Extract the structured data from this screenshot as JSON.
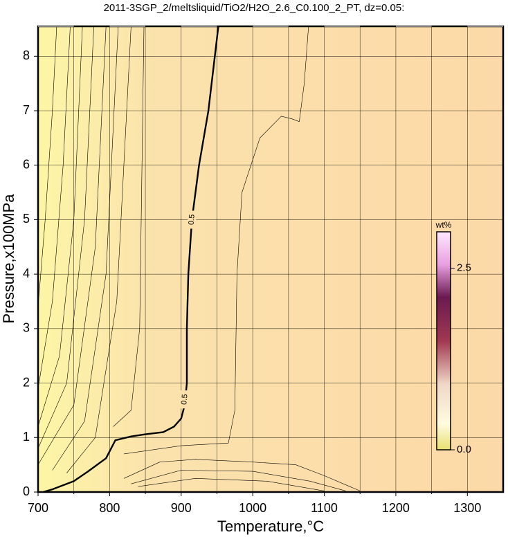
{
  "chart_data": {
    "type": "contour",
    "title": "2011-3SGP_2/meltsliquid/TiO2/H2O_2.6_C0.100_2_PT, dz=0.05:",
    "xlabel": "Temperature,°C",
    "ylabel": "Pressure,x100MPa",
    "xlim": [
      700,
      1350
    ],
    "ylim": [
      0,
      8.55
    ],
    "xticks": [
      700,
      800,
      900,
      1000,
      1100,
      1200,
      1300
    ],
    "x_minor_ticks": [
      750,
      850,
      950,
      1050,
      1150,
      1250
    ],
    "yticks": [
      0,
      1,
      2,
      3,
      4,
      5,
      6,
      7,
      8
    ],
    "grid": true,
    "contours": [
      {
        "level": 0.5,
        "x": [
          707,
          720,
          750,
          770,
          795,
          808,
          830,
          850,
          875,
          890,
          900,
          905,
          908,
          908,
          910,
          915,
          925,
          938,
          952
        ],
        "y": [
          0,
          0.05,
          0.2,
          0.38,
          0.62,
          0.95,
          1.02,
          1.06,
          1.1,
          1.2,
          1.35,
          1.6,
          2.0,
          3.0,
          4.0,
          5.0,
          6.0,
          7.0,
          8.55
        ]
      },
      {
        "x": [
          700,
          710,
          720,
          726
        ],
        "y": [
          3.4,
          5,
          7,
          8.55
        ]
      },
      {
        "x": [
          700,
          720,
          735,
          745
        ],
        "y": [
          1.9,
          3.5,
          6,
          8.55
        ]
      },
      {
        "x": [
          700,
          730,
          750,
          762
        ],
        "y": [
          1.2,
          2.5,
          5,
          8.55
        ]
      },
      {
        "x": [
          700,
          740,
          765,
          778
        ],
        "y": [
          0.8,
          2,
          5,
          8.55
        ]
      },
      {
        "x": [
          700,
          750,
          780,
          795
        ],
        "y": [
          0.5,
          1.6,
          4.5,
          8.55
        ]
      },
      {
        "x": [
          720,
          765,
          795,
          812
        ],
        "y": [
          0.4,
          1.3,
          4,
          8.55
        ]
      },
      {
        "x": [
          740,
          780,
          810,
          830
        ],
        "y": [
          0.35,
          1.0,
          3.5,
          8.55
        ]
      },
      {
        "x": [
          805,
          830,
          842,
          848
        ],
        "y": [
          1.2,
          1.5,
          3,
          8.55
        ]
      },
      {
        "x": [
          820,
          900,
          966,
          975,
          978,
          985,
          1010,
          1040,
          1055,
          1065,
          1072,
          1078
        ],
        "y": [
          0.7,
          0.85,
          0.9,
          1.5,
          4,
          5.5,
          6.5,
          6.9,
          6.85,
          6.8,
          7.5,
          8.55
        ]
      },
      {
        "x": [
          820,
          870,
          920,
          1000,
          1060,
          1100,
          1150
        ],
        "y": [
          0.25,
          0.55,
          0.6,
          0.55,
          0.5,
          0.3,
          0.02
        ]
      },
      {
        "x": [
          830,
          900,
          1000,
          1080,
          1130
        ],
        "y": [
          0.15,
          0.4,
          0.38,
          0.2,
          0.02
        ]
      },
      {
        "x": [
          840,
          920,
          1020,
          1100
        ],
        "y": [
          0.1,
          0.25,
          0.2,
          0.02
        ]
      }
    ],
    "colorbar": {
      "label": "wt%",
      "lim": [
        0,
        3.0
      ],
      "ticks": [
        {
          "value": 0,
          "label": "0.0"
        },
        2.5
      ]
    }
  }
}
